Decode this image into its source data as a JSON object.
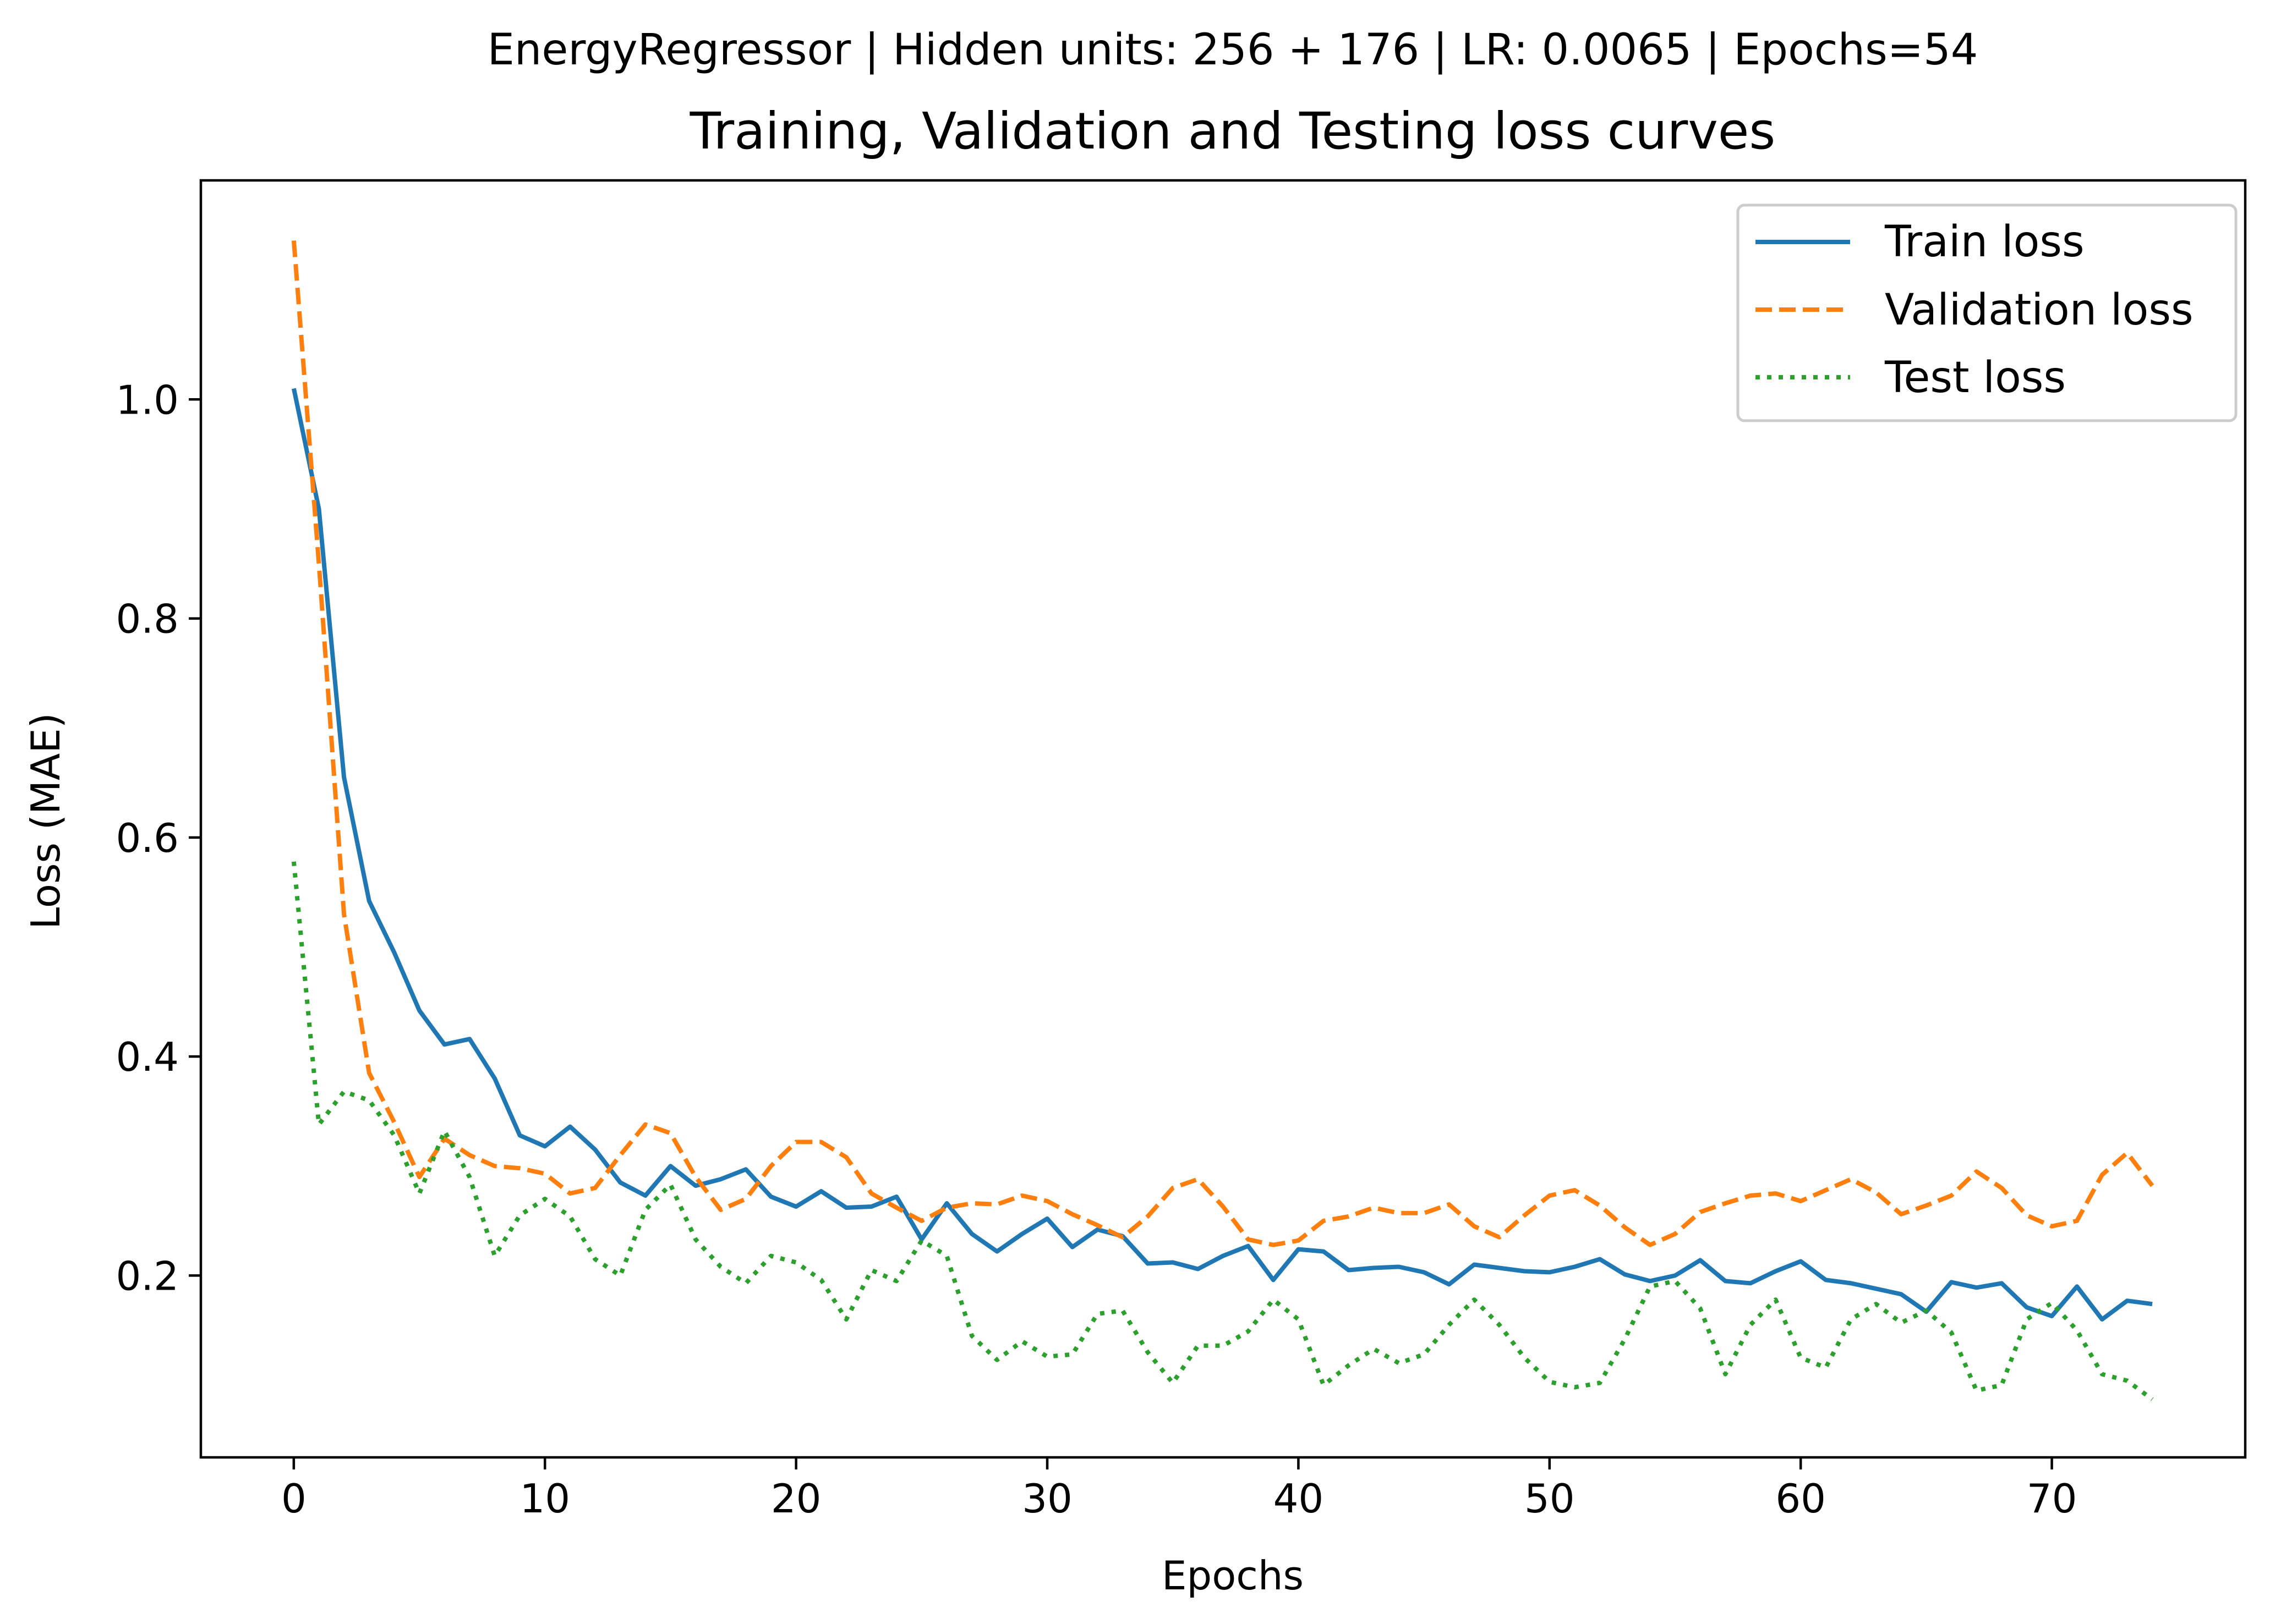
{
  "suptitle": "EnergyRegressor | Hidden units: 256 + 176 | LR: 0.0065 | Epochs=54",
  "chart_data": {
    "type": "line",
    "title": "Training, Validation and Testing loss curves",
    "xlabel": "Epochs",
    "ylabel": "Loss (MAE)",
    "xlim": [
      -3.7,
      77.7
    ],
    "ylim": [
      0.034,
      1.2
    ],
    "xticks": [
      0,
      10,
      20,
      30,
      40,
      50,
      60,
      70
    ],
    "yticks": [
      0.2,
      0.4,
      0.6,
      0.8,
      1.0
    ],
    "xtick_labels": [
      "0",
      "10",
      "20",
      "30",
      "40",
      "50",
      "60",
      "70"
    ],
    "ytick_labels": [
      "0.2",
      "0.4",
      "0.6",
      "0.8",
      "1.0"
    ],
    "grid": false,
    "legend_position": "upper right",
    "x": [
      0,
      1,
      2,
      3,
      4,
      5,
      6,
      7,
      8,
      9,
      10,
      11,
      12,
      13,
      14,
      15,
      16,
      17,
      18,
      19,
      20,
      21,
      22,
      23,
      24,
      25,
      26,
      27,
      28,
      29,
      30,
      31,
      32,
      33,
      34,
      35,
      36,
      37,
      38,
      39,
      40,
      41,
      42,
      43,
      44,
      45,
      46,
      47,
      48,
      49,
      50,
      51,
      52,
      53,
      54,
      55,
      56,
      57,
      58,
      59,
      60,
      61,
      62,
      63,
      64,
      65,
      66,
      67,
      68,
      69,
      70,
      71,
      72,
      73,
      74
    ],
    "series": [
      {
        "name": "Train loss",
        "color": "#1f77b4",
        "style": "solid",
        "values": [
          1.01,
          0.9,
          0.655,
          0.542,
          0.495,
          0.442,
          0.411,
          0.416,
          0.38,
          0.328,
          0.318,
          0.336,
          0.315,
          0.285,
          0.273,
          0.3,
          0.282,
          0.288,
          0.297,
          0.272,
          0.263,
          0.277,
          0.262,
          0.263,
          0.272,
          0.233,
          0.266,
          0.238,
          0.222,
          0.238,
          0.252,
          0.226,
          0.242,
          0.236,
          0.211,
          0.212,
          0.206,
          0.218,
          0.227,
          0.196,
          0.224,
          0.222,
          0.205,
          0.207,
          0.208,
          0.203,
          0.192,
          0.21,
          0.207,
          0.204,
          0.203,
          0.208,
          0.215,
          0.201,
          0.195,
          0.2,
          0.214,
          0.195,
          0.193,
          0.204,
          0.213,
          0.196,
          0.193,
          0.188,
          0.183,
          0.167,
          0.194,
          0.189,
          0.193,
          0.171,
          0.163,
          0.19,
          0.16,
          0.177,
          0.174
        ]
      },
      {
        "name": "Validation loss",
        "color": "#ff7f0e",
        "style": "dashed",
        "values": [
          1.145,
          0.85,
          0.53,
          0.385,
          0.34,
          0.29,
          0.325,
          0.31,
          0.3,
          0.298,
          0.293,
          0.275,
          0.28,
          0.31,
          0.338,
          0.33,
          0.29,
          0.26,
          0.27,
          0.3,
          0.322,
          0.322,
          0.308,
          0.275,
          0.262,
          0.25,
          0.262,
          0.266,
          0.265,
          0.273,
          0.268,
          0.256,
          0.246,
          0.235,
          0.254,
          0.28,
          0.288,
          0.263,
          0.233,
          0.228,
          0.232,
          0.25,
          0.254,
          0.262,
          0.257,
          0.257,
          0.265,
          0.245,
          0.235,
          0.255,
          0.273,
          0.278,
          0.264,
          0.244,
          0.228,
          0.238,
          0.258,
          0.266,
          0.273,
          0.275,
          0.268,
          0.278,
          0.288,
          0.276,
          0.256,
          0.264,
          0.273,
          0.295,
          0.28,
          0.255,
          0.245,
          0.25,
          0.292,
          0.312,
          0.282
        ]
      },
      {
        "name": "Test loss",
        "color": "#2ca02c",
        "style": "dotted",
        "values": [
          0.578,
          0.338,
          0.368,
          0.36,
          0.328,
          0.275,
          0.332,
          0.29,
          0.218,
          0.255,
          0.27,
          0.254,
          0.215,
          0.2,
          0.26,
          0.283,
          0.233,
          0.208,
          0.193,
          0.218,
          0.212,
          0.196,
          0.16,
          0.205,
          0.195,
          0.232,
          0.218,
          0.145,
          0.123,
          0.14,
          0.126,
          0.128,
          0.165,
          0.168,
          0.13,
          0.102,
          0.136,
          0.136,
          0.149,
          0.178,
          0.16,
          0.1,
          0.118,
          0.133,
          0.12,
          0.128,
          0.155,
          0.178,
          0.155,
          0.125,
          0.103,
          0.098,
          0.102,
          0.142,
          0.19,
          0.195,
          0.17,
          0.11,
          0.155,
          0.178,
          0.125,
          0.116,
          0.16,
          0.174,
          0.157,
          0.168,
          0.148,
          0.095,
          0.1,
          0.16,
          0.175,
          0.15,
          0.11,
          0.104,
          0.087
        ]
      }
    ]
  }
}
